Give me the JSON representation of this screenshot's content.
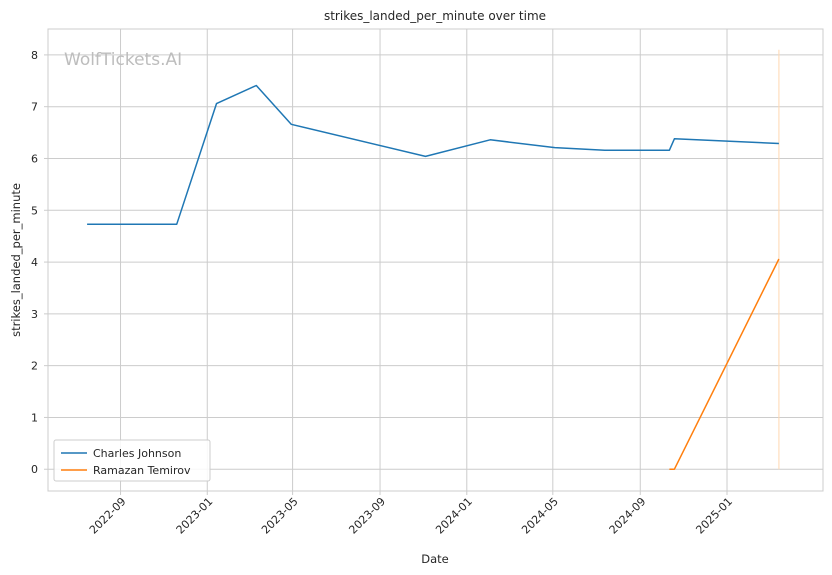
{
  "watermark": "WolfTickets.AI",
  "chart_data": {
    "type": "line",
    "title": "strikes_landed_per_minute over time",
    "xlabel": "Date",
    "ylabel": "strikes_landed_per_minute",
    "x_ticks": [
      "2022-09",
      "2023-01",
      "2023-05",
      "2023-09",
      "2024-01",
      "2024-05",
      "2024-09",
      "2025-01"
    ],
    "y_ticks": [
      0,
      1,
      2,
      3,
      4,
      5,
      6,
      7,
      8
    ],
    "xlim": [
      "2022-05-22",
      "2025-05-16"
    ],
    "ylim": [
      -0.42,
      8.5
    ],
    "grid": true,
    "legend_position": "lower-left",
    "series": [
      {
        "name": "Charles Johnson",
        "color": "#1f77b4",
        "points": [
          {
            "x": "2022-07-16",
            "y": 4.73
          },
          {
            "x": "2022-11-19",
            "y": 4.73
          },
          {
            "x": "2023-01-14",
            "y": 7.06
          },
          {
            "x": "2023-03-11",
            "y": 7.41
          },
          {
            "x": "2023-04-29",
            "y": 6.66
          },
          {
            "x": "2023-11-04",
            "y": 6.04
          },
          {
            "x": "2024-02-03",
            "y": 6.36
          },
          {
            "x": "2024-05-04",
            "y": 6.21
          },
          {
            "x": "2024-07-13",
            "y": 6.16
          },
          {
            "x": "2024-10-12",
            "y": 6.16
          },
          {
            "x": "2024-10-19",
            "y": 6.38
          },
          {
            "x": "2025-03-15",
            "y": 6.29
          }
        ]
      },
      {
        "name": "Ramazan Temirov",
        "color": "#ff7f0e",
        "points": [
          {
            "x": "2024-10-12",
            "y": 0.0
          },
          {
            "x": "2024-10-19",
            "y": 0.0
          },
          {
            "x": "2025-03-15",
            "y": 4.06
          }
        ]
      }
    ],
    "vertical_marker": {
      "x": "2025-03-15",
      "y_from": 0,
      "y_to": 8.1,
      "color": "#ffd8b0"
    }
  }
}
